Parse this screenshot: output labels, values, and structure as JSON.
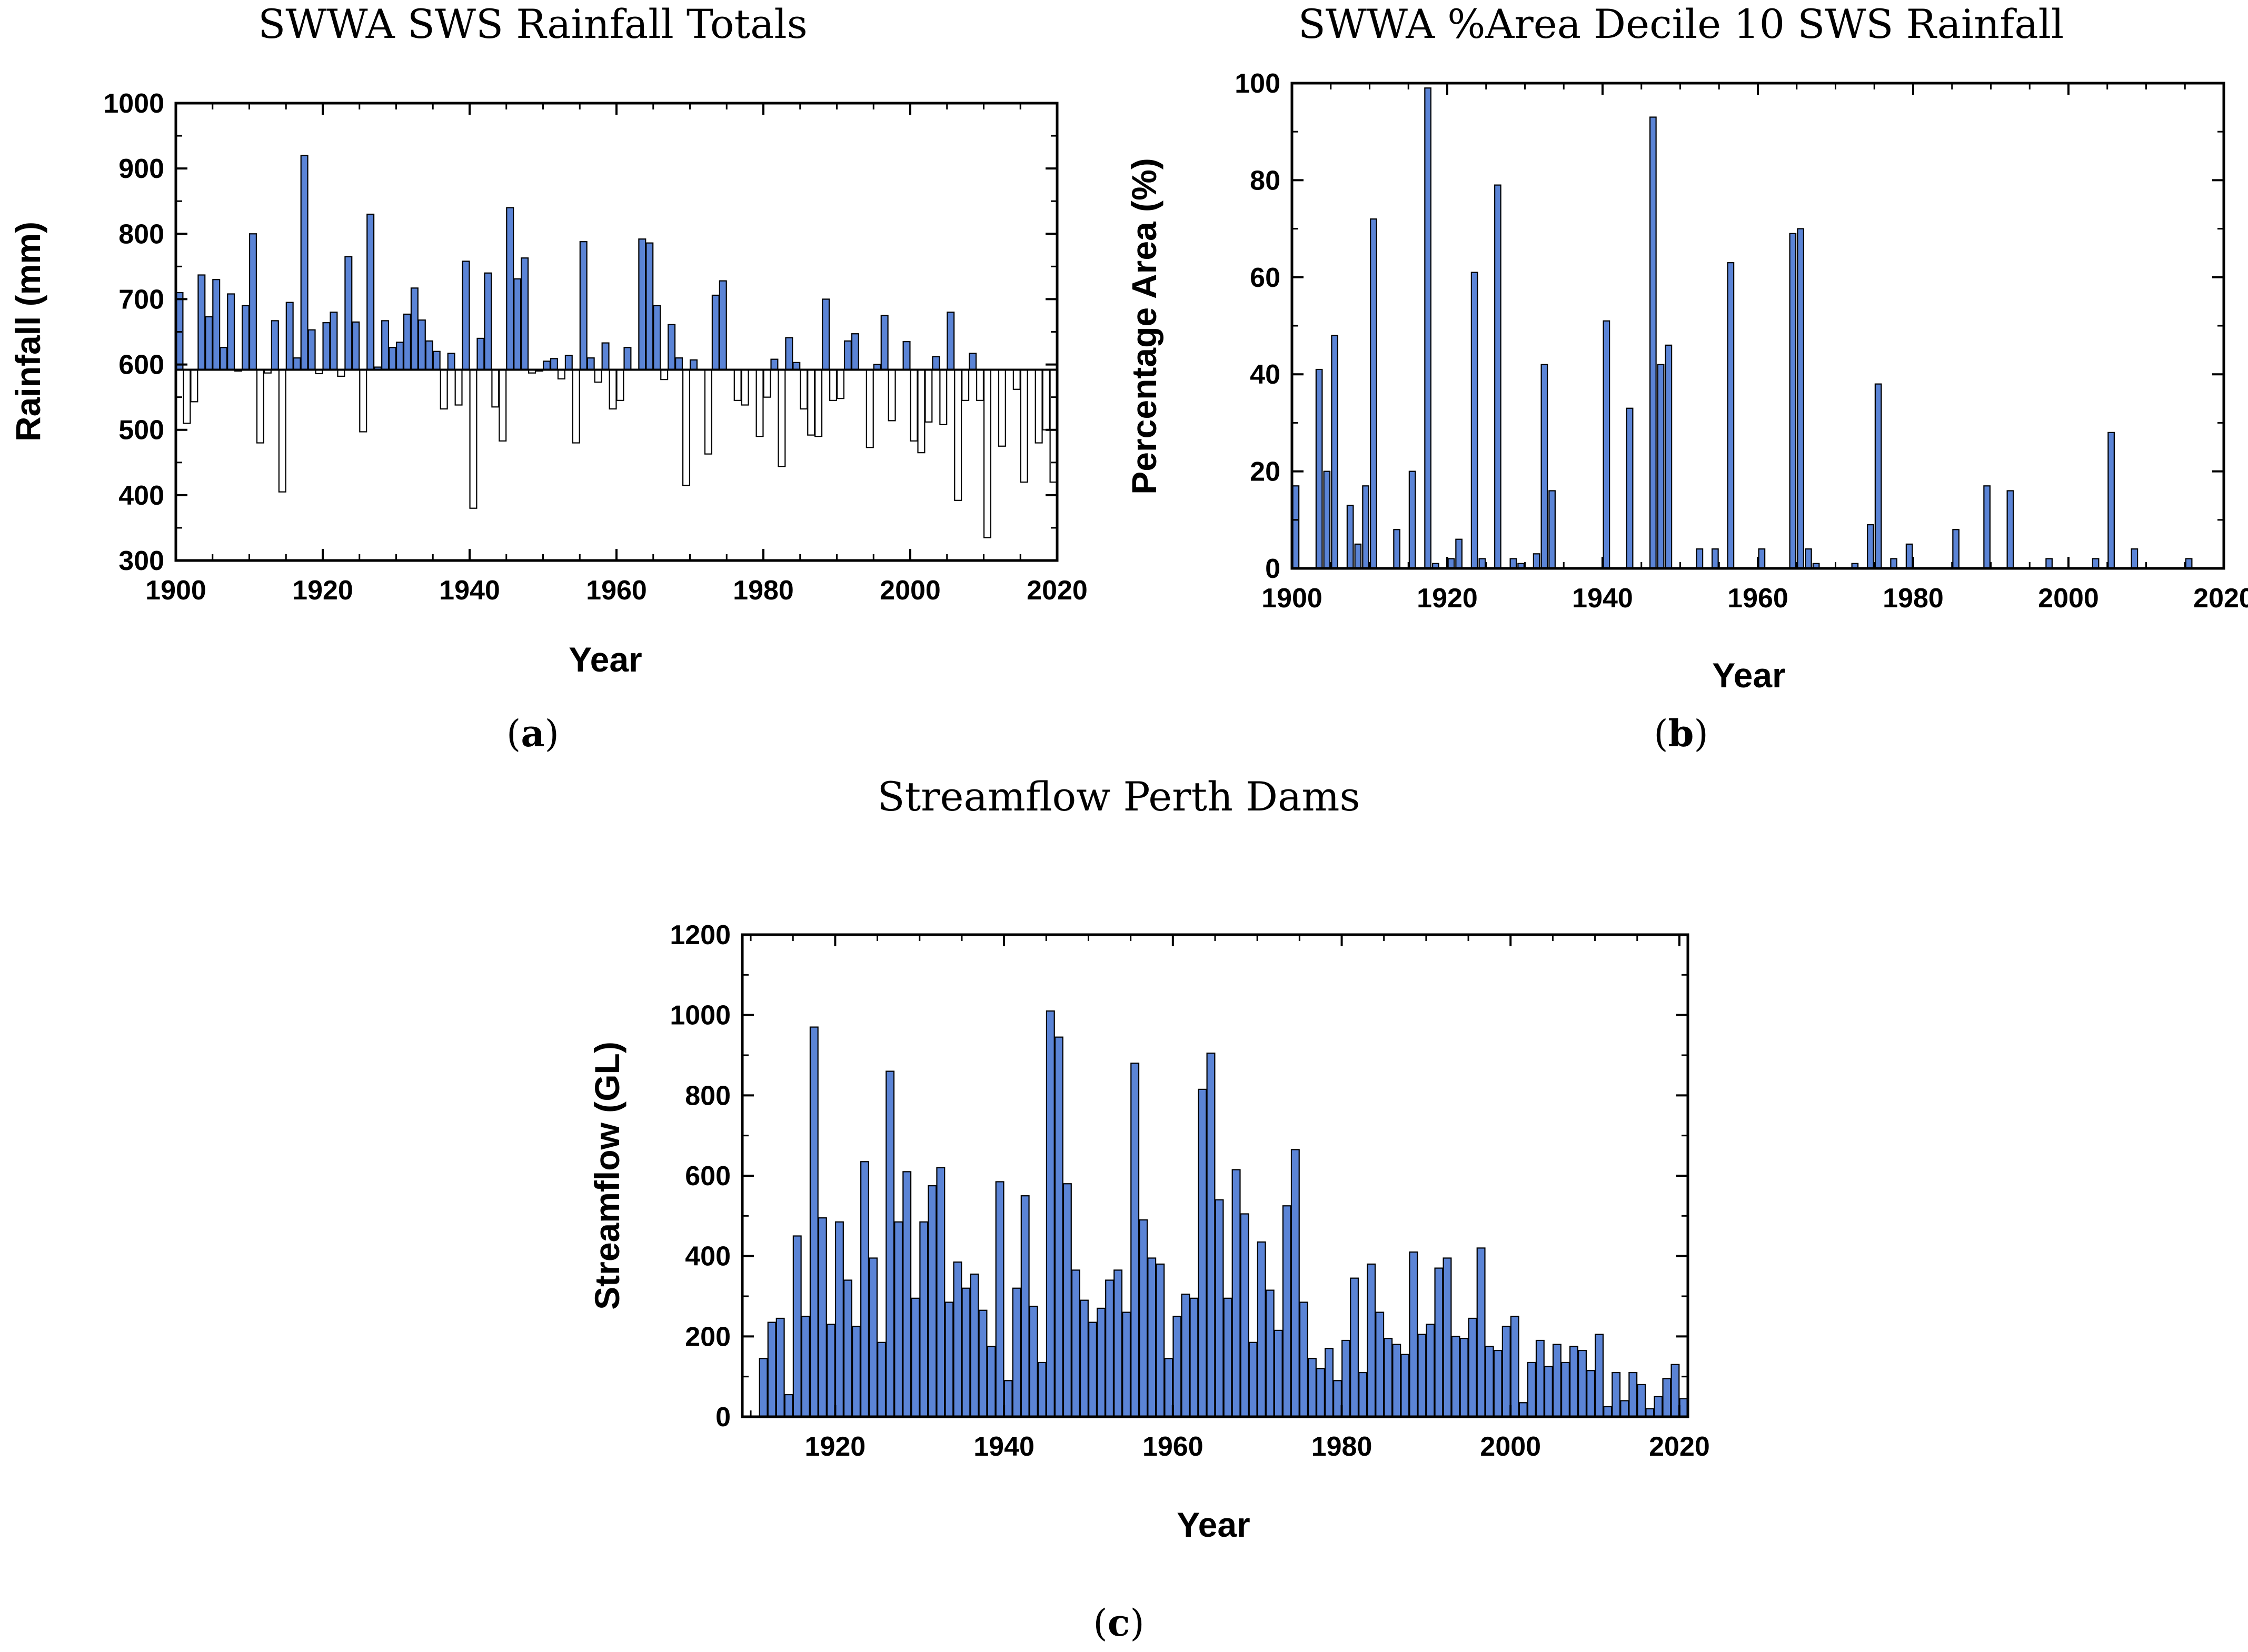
{
  "chart_data": [
    {
      "id": "a",
      "type": "bar",
      "title": "SWWA SWS Rainfall Totals",
      "caption_letter": "a",
      "xlabel": "Year",
      "ylabel": "Rainfall (mm)",
      "xlim": [
        1900,
        2020
      ],
      "ylim": [
        300,
        1000
      ],
      "xticks": [
        "1900",
        "1920",
        "1940",
        "1960",
        "1980",
        "2000",
        "2020"
      ],
      "yticks": [
        "300",
        "400",
        "500",
        "600",
        "700",
        "800",
        "900",
        "1000"
      ],
      "baseline": 592,
      "above_color": "#5b84d6",
      "below_color": "#ffffff",
      "x_start": 1900,
      "values": [
        710,
        510,
        543,
        737,
        673,
        730,
        626,
        708,
        590,
        690,
        800,
        480,
        587,
        667,
        405,
        695,
        610,
        920,
        653,
        586,
        664,
        680,
        582,
        765,
        665,
        497,
        830,
        596,
        667,
        626,
        634,
        677,
        717,
        668,
        636,
        620,
        532,
        617,
        538,
        758,
        380,
        640,
        740,
        535,
        483,
        840,
        731,
        763,
        587,
        590,
        605,
        609,
        578,
        614,
        480,
        788,
        610,
        573,
        633,
        532,
        545,
        626,
        592,
        792,
        786,
        690,
        577,
        661,
        610,
        415,
        607,
        592,
        463,
        706,
        728,
        592,
        545,
        538,
        592,
        490,
        550,
        608,
        444,
        641,
        603,
        532,
        492,
        490,
        700,
        545,
        548,
        636,
        647,
        592,
        473,
        600,
        675,
        514,
        592,
        635,
        483,
        465,
        512,
        612,
        508,
        680,
        392,
        545,
        617,
        545,
        335,
        592,
        475,
        592,
        562,
        420,
        592,
        480,
        500,
        420
      ]
    },
    {
      "id": "b",
      "type": "bar",
      "title": "SWWA %Area Decile 10 SWS Rainfall",
      "caption_letter": "b",
      "xlabel": "Year",
      "ylabel": "Percentage Area (%)",
      "xlim": [
        1900,
        2020
      ],
      "ylim": [
        0,
        100
      ],
      "xticks": [
        "1900",
        "1920",
        "1940",
        "1960",
        "1980",
        "2000",
        "2020"
      ],
      "yticks": [
        "0",
        "20",
        "40",
        "60",
        "80",
        "100"
      ],
      "bar_color": "#5b84d6",
      "x_start": 1900,
      "values": [
        17,
        0,
        0,
        41,
        20,
        48,
        0,
        13,
        5,
        17,
        72,
        0,
        0,
        8,
        0,
        20,
        0,
        99,
        1,
        0,
        2,
        6,
        0,
        61,
        2,
        0,
        79,
        0,
        2,
        1,
        0,
        3,
        42,
        16,
        0,
        0,
        0,
        0,
        0,
        0,
        51,
        0,
        0,
        33,
        0,
        0,
        93,
        42,
        46,
        0,
        0,
        0,
        4,
        0,
        4,
        0,
        63,
        0,
        0,
        0,
        4,
        0,
        0,
        0,
        69,
        70,
        4,
        1,
        0,
        0,
        0,
        0,
        1,
        0,
        9,
        38,
        0,
        2,
        0,
        5,
        0,
        0,
        0,
        0,
        0,
        8,
        0,
        0,
        0,
        17,
        0,
        0,
        16,
        0,
        0,
        0,
        0,
        2,
        0,
        0,
        0,
        0,
        0,
        2,
        0,
        28,
        0,
        0,
        4,
        0,
        0,
        0,
        0,
        0,
        0,
        2,
        0,
        0,
        0,
        0
      ]
    },
    {
      "id": "c",
      "type": "bar",
      "title": "Streamflow Perth Dams",
      "caption_letter": "c",
      "xlabel": "Year",
      "ylabel": "Streamflow (GL)",
      "xlim": [
        1909,
        2021
      ],
      "ylim": [
        0,
        1200
      ],
      "xticks": [
        "1920",
        "1940",
        "1960",
        "1980",
        "2000",
        "2020"
      ],
      "yticks": [
        "0",
        "200",
        "400",
        "600",
        "800",
        "1000",
        "1200"
      ],
      "bar_color": "#5b84d6",
      "x_start": 1911,
      "values": [
        145,
        235,
        245,
        55,
        450,
        250,
        970,
        495,
        230,
        485,
        340,
        225,
        635,
        395,
        185,
        860,
        485,
        610,
        295,
        485,
        575,
        620,
        285,
        385,
        320,
        355,
        265,
        175,
        585,
        90,
        320,
        550,
        275,
        135,
        1010,
        945,
        580,
        365,
        290,
        235,
        270,
        340,
        365,
        260,
        880,
        490,
        395,
        380,
        145,
        250,
        305,
        295,
        815,
        905,
        540,
        295,
        615,
        505,
        185,
        435,
        315,
        215,
        525,
        665,
        285,
        145,
        120,
        170,
        90,
        190,
        345,
        110,
        380,
        260,
        195,
        180,
        155,
        410,
        205,
        230,
        370,
        395,
        200,
        195,
        245,
        420,
        175,
        165,
        225,
        250,
        35,
        135,
        190,
        125,
        180,
        135,
        175,
        165,
        115,
        205,
        25,
        110,
        40,
        110,
        80,
        20,
        50,
        95,
        130,
        45
      ]
    }
  ]
}
